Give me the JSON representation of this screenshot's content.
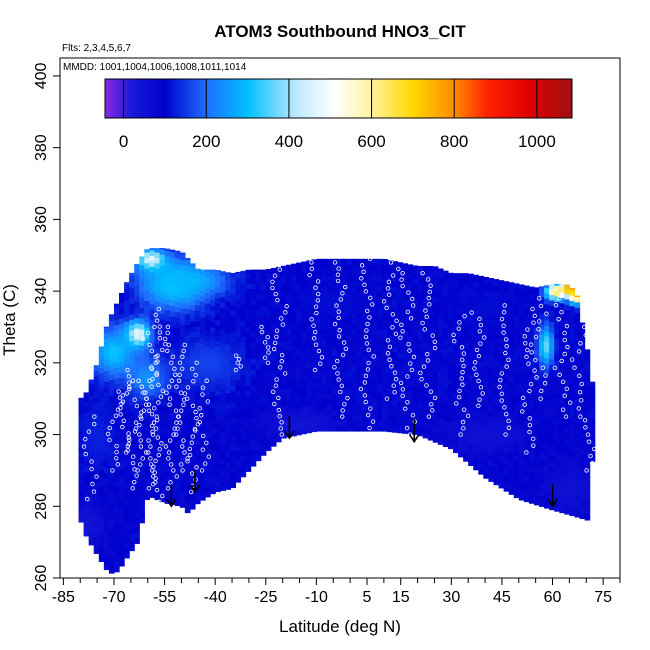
{
  "chart_data": {
    "type": "heatmap",
    "title": "ATOM3 Southbound HNO3_CIT",
    "flights_note": "Flts: 2,3,4,5,6,7",
    "dates_note": "MMDD: 1001,1004,1006,1008,1011,1014",
    "xlabel": "Latitude (deg N)",
    "ylabel": "Theta (C)",
    "xlim": [
      -86,
      80
    ],
    "ylim": [
      260,
      405
    ],
    "x_ticks": [
      -85,
      -70,
      -55,
      -40,
      -25,
      -10,
      5,
      15,
      30,
      45,
      60,
      75
    ],
    "x_minor_ticks": [
      -80,
      -75,
      -65,
      -60,
      -50,
      -45,
      -35,
      -30,
      -20,
      -15,
      -5,
      0,
      10,
      20,
      25,
      35,
      40,
      50,
      55,
      65,
      70,
      80
    ],
    "y_ticks": [
      260,
      280,
      300,
      320,
      340,
      360,
      380,
      400
    ],
    "colorbar": {
      "range": [
        -45,
        1085
      ],
      "ticks": [
        0,
        200,
        400,
        600,
        800,
        1000
      ],
      "gradient": [
        {
          "v": -45,
          "c": "#8a2be2"
        },
        {
          "v": 20,
          "c": "#1a1ad9"
        },
        {
          "v": 100,
          "c": "#0000cd"
        },
        {
          "v": 200,
          "c": "#1e6fff"
        },
        {
          "v": 300,
          "c": "#00bfff"
        },
        {
          "v": 420,
          "c": "#bfe9ff"
        },
        {
          "v": 510,
          "c": "#ffffff"
        },
        {
          "v": 600,
          "c": "#fff3a0"
        },
        {
          "v": 700,
          "c": "#ffd700"
        },
        {
          "v": 800,
          "c": "#ff8c00"
        },
        {
          "v": 880,
          "c": "#ff2200"
        },
        {
          "v": 980,
          "c": "#e00000"
        },
        {
          "v": 1085,
          "c": "#a01010"
        }
      ]
    },
    "domain_top": [
      [
        -81,
        309
      ],
      [
        -78,
        312
      ],
      [
        -75,
        320
      ],
      [
        -72,
        331
      ],
      [
        -69,
        337
      ],
      [
        -66,
        343
      ],
      [
        -63,
        348
      ],
      [
        -60,
        352
      ],
      [
        -55,
        352
      ],
      [
        -50,
        351
      ],
      [
        -45,
        346
      ],
      [
        -40,
        346
      ],
      [
        -35,
        345
      ],
      [
        -30,
        346
      ],
      [
        -25,
        346
      ],
      [
        -20,
        347
      ],
      [
        -15,
        348
      ],
      [
        -10,
        349
      ],
      [
        -5,
        349
      ],
      [
        0,
        349
      ],
      [
        5,
        349
      ],
      [
        10,
        349
      ],
      [
        15,
        348
      ],
      [
        20,
        347
      ],
      [
        25,
        347
      ],
      [
        30,
        345
      ],
      [
        35,
        345
      ],
      [
        40,
        344
      ],
      [
        45,
        343
      ],
      [
        50,
        342
      ],
      [
        55,
        341
      ],
      [
        60,
        342
      ],
      [
        64,
        342
      ],
      [
        67,
        340
      ],
      [
        69,
        330
      ],
      [
        71,
        320
      ],
      [
        73,
        306
      ]
    ],
    "domain_bottom": [
      [
        73,
        306
      ],
      [
        72,
        298
      ],
      [
        71,
        276
      ],
      [
        60,
        279
      ],
      [
        50,
        282
      ],
      [
        40,
        288
      ],
      [
        30,
        296
      ],
      [
        20,
        300
      ],
      [
        10,
        301
      ],
      [
        0,
        301
      ],
      [
        -10,
        301
      ],
      [
        -20,
        299
      ],
      [
        -25,
        295
      ],
      [
        -30,
        290
      ],
      [
        -35,
        285
      ],
      [
        -40,
        284
      ],
      [
        -45,
        281
      ],
      [
        -48,
        278
      ],
      [
        -50,
        280
      ],
      [
        -55,
        281
      ],
      [
        -60,
        283
      ],
      [
        -63,
        270
      ],
      [
        -66,
        266
      ],
      [
        -68,
        263
      ],
      [
        -70,
        261
      ],
      [
        -72,
        262
      ],
      [
        -74,
        265
      ],
      [
        -76,
        268
      ],
      [
        -79,
        273
      ],
      [
        -81,
        280
      ]
    ],
    "background_value": 95,
    "features": [
      {
        "lat": -52,
        "theta": 342,
        "value": 330,
        "sx": 7,
        "sy": 5
      },
      {
        "lat": -59,
        "theta": 349,
        "value": 480,
        "sx": 3,
        "sy": 2
      },
      {
        "lat": -48,
        "theta": 343,
        "value": 290,
        "sx": 8,
        "sy": 3
      },
      {
        "lat": -63,
        "theta": 328,
        "value": 540,
        "sx": 2.5,
        "sy": 2.5
      },
      {
        "lat": -70,
        "theta": 323,
        "value": 310,
        "sx": 5,
        "sy": 5
      },
      {
        "lat": -60,
        "theta": 316,
        "value": 250,
        "sx": 4,
        "sy": 4
      },
      {
        "lat": -42,
        "theta": 320,
        "value": 160,
        "sx": 8,
        "sy": 6
      },
      {
        "lat": -75,
        "theta": 300,
        "value": 130,
        "sx": 4,
        "sy": 8
      },
      {
        "lat": 58,
        "theta": 325,
        "value": 380,
        "sx": 1.6,
        "sy": 4
      },
      {
        "lat": 61,
        "theta": 340,
        "value": 700,
        "sx": 2.2,
        "sy": 1.6
      },
      {
        "lat": 65,
        "theta": 341,
        "value": 880,
        "sx": 1.6,
        "sy": 1.4
      },
      {
        "lat": 67,
        "theta": 339,
        "value": 780,
        "sx": 1.5,
        "sy": 1.6
      },
      {
        "lat": 40,
        "theta": 335,
        "value": 110,
        "sx": 10,
        "sy": 6
      },
      {
        "lat": -5,
        "theta": 337,
        "value": 110,
        "sx": 15,
        "sy": 6
      },
      {
        "lat": -15,
        "theta": 303,
        "value": 40,
        "sx": 8,
        "sy": 3
      },
      {
        "lat": 40,
        "theta": 300,
        "value": 50,
        "sx": 10,
        "sy": 4
      },
      {
        "lat": 65,
        "theta": 285,
        "value": 50,
        "sx": 6,
        "sy": 5
      },
      {
        "lat": -78,
        "theta": 275,
        "value": 40,
        "sx": 4,
        "sy": 5
      }
    ],
    "tropopause_arrows": [
      {
        "lat": -53,
        "theta": 280
      },
      {
        "lat": -46,
        "theta": 284
      },
      {
        "lat": -18,
        "theta": 299
      },
      {
        "lat": 19,
        "theta": 298
      },
      {
        "lat": 60,
        "theta": 280
      }
    ],
    "profiles": [
      {
        "lat": -57,
        "t0": 278,
        "t1": 335,
        "n": 36
      },
      {
        "lat": -59,
        "t0": 285,
        "t1": 330,
        "n": 28
      },
      {
        "lat": -62,
        "t0": 290,
        "t1": 315,
        "n": 16
      },
      {
        "lat": -64,
        "t0": 285,
        "t1": 315,
        "n": 18
      },
      {
        "lat": -67,
        "t0": 295,
        "t1": 318,
        "n": 14
      },
      {
        "lat": -70,
        "t0": 290,
        "t1": 312,
        "n": 14
      },
      {
        "lat": -53,
        "t0": 285,
        "t1": 330,
        "n": 28
      },
      {
        "lat": -50,
        "t0": 290,
        "t1": 325,
        "n": 22
      },
      {
        "lat": -47,
        "t0": 284,
        "t1": 320,
        "n": 22
      },
      {
        "lat": -44,
        "t0": 290,
        "t1": 315,
        "n": 14
      },
      {
        "lat": -34,
        "t0": 318,
        "t1": 322,
        "n": 5
      },
      {
        "lat": -25,
        "t0": 320,
        "t1": 330,
        "n": 8
      },
      {
        "lat": -21,
        "t0": 300,
        "t1": 346,
        "n": 28
      },
      {
        "lat": -10,
        "t0": 318,
        "t1": 348,
        "n": 18
      },
      {
        "lat": -3,
        "t0": 305,
        "t1": 348,
        "n": 26
      },
      {
        "lat": 5,
        "t0": 300,
        "t1": 349,
        "n": 28
      },
      {
        "lat": 12,
        "t0": 310,
        "t1": 348,
        "n": 22
      },
      {
        "lat": 17,
        "t0": 300,
        "t1": 345,
        "n": 26
      },
      {
        "lat": 23,
        "t0": 305,
        "t1": 345,
        "n": 24
      },
      {
        "lat": 33,
        "t0": 300,
        "t1": 333,
        "n": 20
      },
      {
        "lat": 38,
        "t0": 308,
        "t1": 334,
        "n": 16
      },
      {
        "lat": 46,
        "t0": 300,
        "t1": 336,
        "n": 20
      },
      {
        "lat": 53,
        "t0": 295,
        "t1": 335,
        "n": 22
      },
      {
        "lat": 56,
        "t0": 310,
        "t1": 338,
        "n": 14
      },
      {
        "lat": 63,
        "t0": 305,
        "t1": 338,
        "n": 18
      },
      {
        "lat": 68,
        "t0": 305,
        "t1": 330,
        "n": 12
      },
      {
        "lat": 71,
        "t0": 290,
        "t1": 304,
        "n": 8
      },
      {
        "lat": -77,
        "t0": 282,
        "t1": 305,
        "n": 12
      }
    ]
  }
}
